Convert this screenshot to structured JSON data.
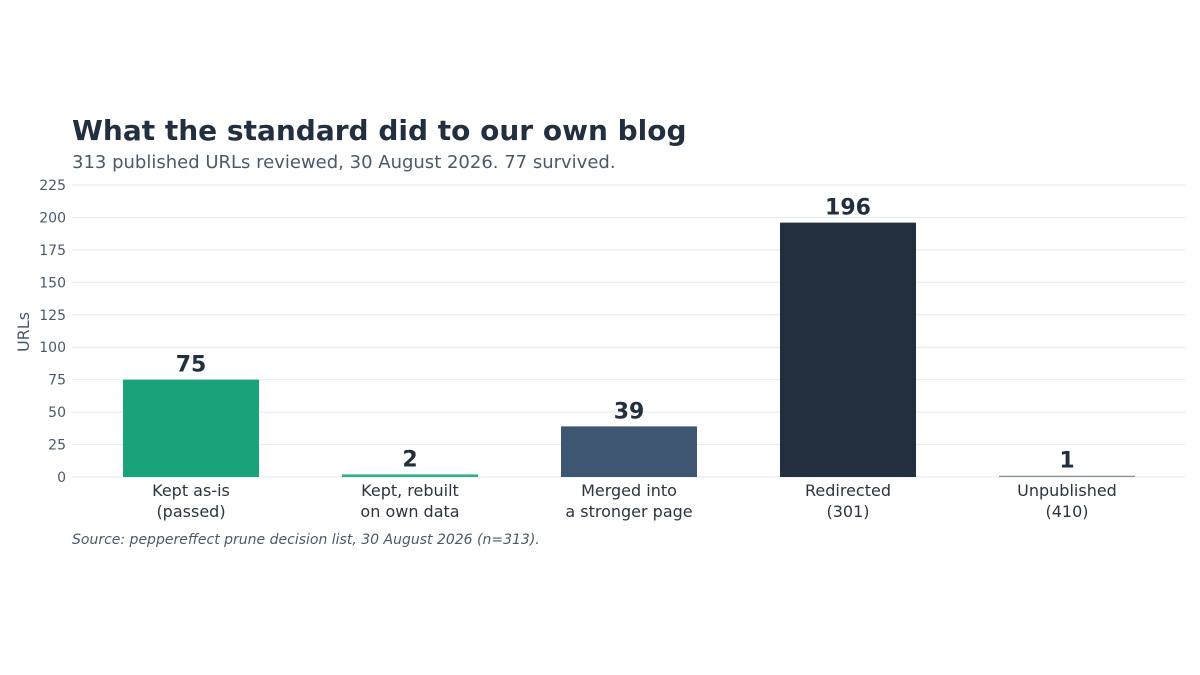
{
  "chart_data": {
    "type": "bar",
    "title": "What the standard did to our own blog",
    "subtitle": "313 published URLs reviewed, 30 August 2026. 77 survived.",
    "ylabel": "URLs",
    "xlabel": "",
    "ylim": [
      0,
      225
    ],
    "yticks": [
      0,
      25,
      50,
      75,
      100,
      125,
      150,
      175,
      200,
      225
    ],
    "grid": true,
    "categories": [
      [
        "Kept as-is",
        "(passed)"
      ],
      [
        "Kept, rebuilt",
        "on own data"
      ],
      [
        "Merged into",
        "a stronger page"
      ],
      [
        "Redirected",
        "(301)"
      ],
      [
        "Unpublished",
        "(410)"
      ]
    ],
    "values": [
      75,
      2,
      39,
      196,
      1
    ],
    "colors": [
      "#1aa37a",
      "#2fb088",
      "#3f5673",
      "#222f3e",
      "#8a9099"
    ],
    "source": "Source: peppereffect prune decision list, 30 August 2026 (n=313)."
  }
}
